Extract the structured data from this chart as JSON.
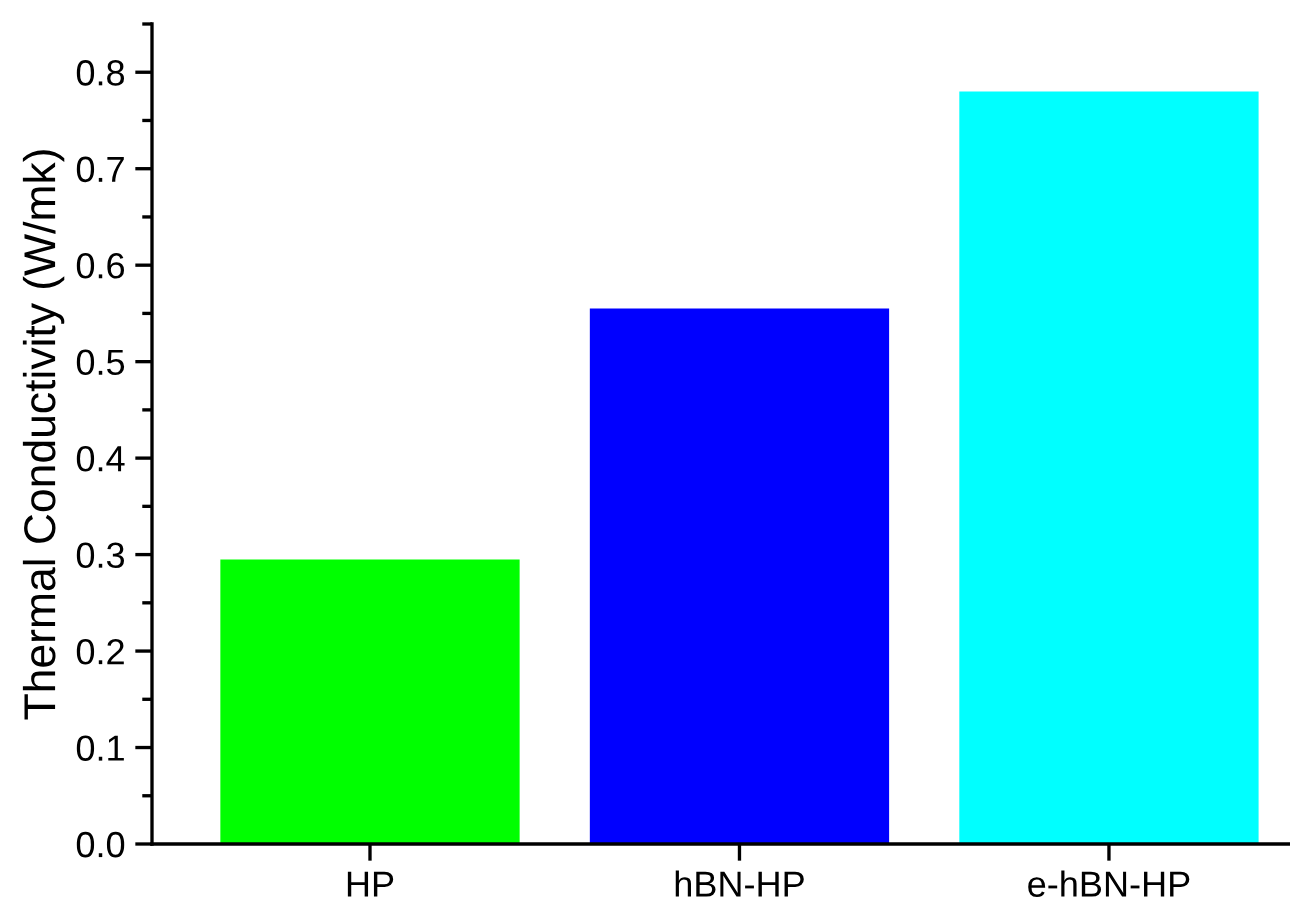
{
  "chart_data": {
    "type": "bar",
    "ylabel": "Thermal Conductivity (W/mk)",
    "categories": [
      "HP",
      "hBN-HP",
      "e-hBN-HP"
    ],
    "values": [
      0.295,
      0.555,
      0.78
    ],
    "colors": [
      "#00ff00",
      "#0000ff",
      "#00ffff"
    ],
    "ylim": [
      0,
      0.85
    ],
    "yticks": [
      {
        "value": 0,
        "label": "0.0"
      },
      0.1,
      0.2,
      0.3,
      0.4,
      0.5,
      0.6,
      0.7,
      0.8
    ],
    "grid": false,
    "legend": false
  }
}
